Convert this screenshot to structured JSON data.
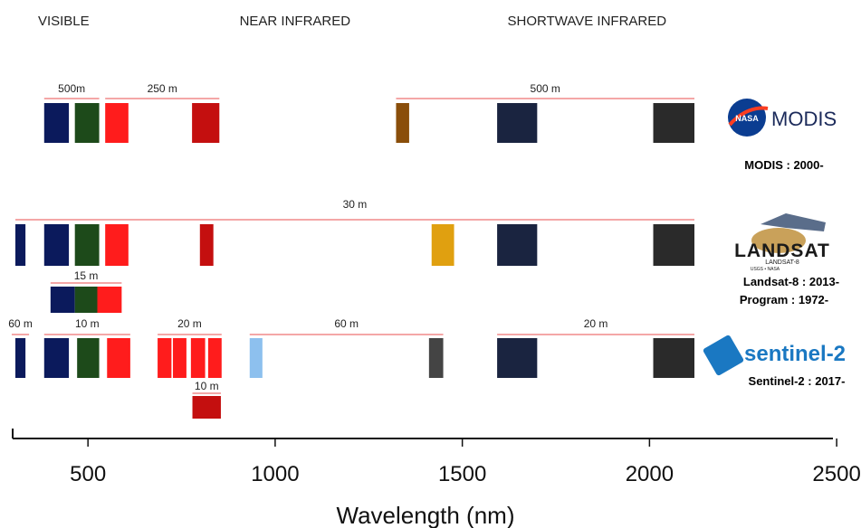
{
  "chart_data": {
    "type": "bar",
    "title": "",
    "xlabel": "Wavelength (nm)",
    "ylabel": "",
    "xlim": [
      265,
      2565
    ],
    "x_ticks": [
      500,
      1000,
      1500,
      2000,
      2500
    ],
    "grid": false,
    "regions": [
      {
        "label": "VISIBLE",
        "x": 435
      },
      {
        "label": "NEAR INFRARED",
        "x": 1053
      },
      {
        "label": "SHORTWAVE INFRARED",
        "x": 1833
      }
    ],
    "sensors": [
      {
        "name": "MODIS",
        "logo_text": "MODIS",
        "logo_badge": "NASA",
        "caption_lines": [
          "MODIS : 2000-"
        ],
        "bands": [
          {
            "start": 383,
            "end": 449,
            "color": "#0b1a5c"
          },
          {
            "start": 465,
            "end": 530,
            "color": "#1d4a1a"
          },
          {
            "start": 546,
            "end": 608,
            "color": "#ff1c1c"
          },
          {
            "start": 778,
            "end": 851,
            "color": "#c40f0f"
          },
          {
            "start": 1323,
            "end": 1358,
            "color": "#8a4e0a"
          },
          {
            "start": 1593,
            "end": 1700,
            "color": "#1a2440"
          },
          {
            "start": 2010,
            "end": 2120,
            "color": "#2a2a2a"
          }
        ],
        "resolutions": [
          {
            "label": "500m",
            "start": 383,
            "end": 530
          },
          {
            "label": "250 m",
            "start": 546,
            "end": 851
          },
          {
            "label": "500 m",
            "start": 1323,
            "end": 2120
          }
        ]
      },
      {
        "name": "Landsat-8",
        "logo_text": "LANDSAT",
        "logo_subtext": "LANDSAT-8",
        "logo_note": "USGS • NASA",
        "caption_lines": [
          "Landsat-8 : 2013-",
          "Program : 1972-"
        ],
        "bands": [
          {
            "start": 306,
            "end": 333,
            "color": "#0b1a5c"
          },
          {
            "start": 383,
            "end": 449,
            "color": "#0b1a5c"
          },
          {
            "start": 465,
            "end": 530,
            "color": "#1d4a1a"
          },
          {
            "start": 546,
            "end": 608,
            "color": "#ff1c1c"
          },
          {
            "start": 799,
            "end": 835,
            "color": "#c40f0f"
          },
          {
            "start": 1418,
            "end": 1478,
            "color": "#e0a010"
          },
          {
            "start": 1593,
            "end": 1700,
            "color": "#1a2440"
          },
          {
            "start": 2010,
            "end": 2120,
            "color": "#2a2a2a"
          }
        ],
        "panchromatic": [
          {
            "start": 400,
            "end": 465,
            "color": "#0b1a5c"
          },
          {
            "start": 465,
            "end": 525,
            "color": "#1d4a1a"
          },
          {
            "start": 525,
            "end": 590,
            "color": "#ff1c1c"
          }
        ],
        "resolutions": [
          {
            "label": "30 m",
            "start": 306,
            "end": 2120
          },
          {
            "label": "15 m",
            "start": 400,
            "end": 590
          }
        ]
      },
      {
        "name": "Sentinel-2",
        "logo_text": "sentinel-2",
        "caption_lines": [
          "Sentinel-2 : 2017-"
        ],
        "bands": [
          {
            "start": 306,
            "end": 333,
            "color": "#0b1a5c"
          },
          {
            "start": 383,
            "end": 449,
            "color": "#0b1a5c"
          },
          {
            "start": 471,
            "end": 530,
            "color": "#1d4a1a"
          },
          {
            "start": 551,
            "end": 613,
            "color": "#ff1c1c"
          },
          {
            "start": 686,
            "end": 723,
            "color": "#ff1c1c"
          },
          {
            "start": 727,
            "end": 763,
            "color": "#ff1c1c"
          },
          {
            "start": 775,
            "end": 813,
            "color": "#ff1c1c"
          },
          {
            "start": 821,
            "end": 857,
            "color": "#ff1c1c"
          },
          {
            "start": 932,
            "end": 966,
            "color": "#8dc0ee"
          },
          {
            "start": 1411,
            "end": 1449,
            "color": "#444444"
          },
          {
            "start": 1593,
            "end": 1700,
            "color": "#1a2440"
          },
          {
            "start": 2010,
            "end": 2120,
            "color": "#2a2a2a"
          }
        ],
        "narrow_bands": [
          {
            "start": 779,
            "end": 855,
            "color": "#c40f0f"
          }
        ],
        "resolutions": [
          {
            "label": "60 m",
            "start": 306,
            "end": 333
          },
          {
            "label": "10 m",
            "start": 383,
            "end": 613
          },
          {
            "label": "20 m",
            "start": 686,
            "end": 857
          },
          {
            "label": "60 m",
            "start": 932,
            "end": 1449
          },
          {
            "label": "20 m",
            "start": 1593,
            "end": 2120
          },
          {
            "label": "10 m",
            "start": 779,
            "end": 855
          }
        ]
      }
    ]
  }
}
